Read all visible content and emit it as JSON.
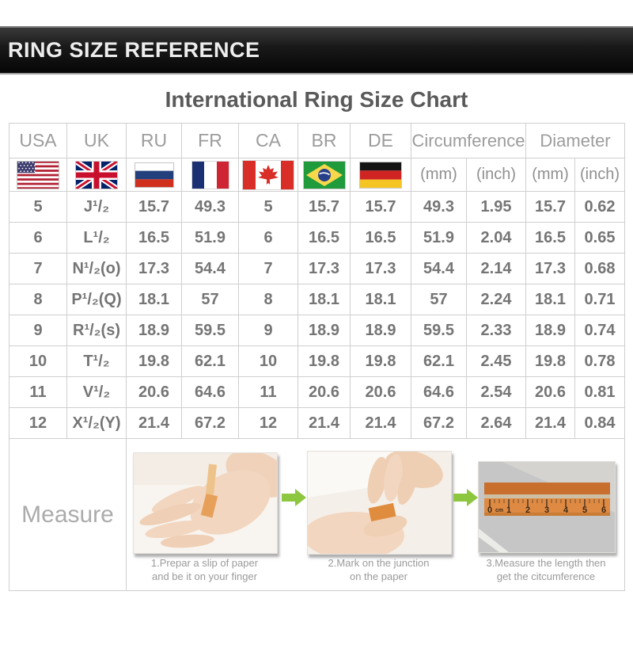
{
  "header": {
    "title": "RING SIZE REFERENCE"
  },
  "chart": {
    "title": "International Ring Size Chart"
  },
  "table": {
    "columns": [
      {
        "key": "usa",
        "label": "USA",
        "flag": "us"
      },
      {
        "key": "uk",
        "label": "UK",
        "flag": "uk"
      },
      {
        "key": "ru",
        "label": "RU",
        "flag": "ru"
      },
      {
        "key": "fr",
        "label": "FR",
        "flag": "fr"
      },
      {
        "key": "ca",
        "label": "CA",
        "flag": "ca"
      },
      {
        "key": "br",
        "label": "BR",
        "flag": "br"
      },
      {
        "key": "de",
        "label": "DE",
        "flag": "de"
      }
    ],
    "groups": [
      {
        "label": "Circumference",
        "sub": [
          "(mm)",
          "(inch)"
        ]
      },
      {
        "label": "Diameter",
        "sub": [
          "(mm)",
          "(inch)"
        ]
      }
    ],
    "rows": [
      [
        "5",
        "J¹/₂",
        "15.7",
        "49.3",
        "5",
        "15.7",
        "15.7",
        "49.3",
        "1.95",
        "15.7",
        "0.62"
      ],
      [
        "6",
        "L¹/₂",
        "16.5",
        "51.9",
        "6",
        "16.5",
        "16.5",
        "51.9",
        "2.04",
        "16.5",
        "0.65"
      ],
      [
        "7",
        "N¹/₂(o)",
        "17.3",
        "54.4",
        "7",
        "17.3",
        "17.3",
        "54.4",
        "2.14",
        "17.3",
        "0.68"
      ],
      [
        "8",
        "P¹/₂(Q)",
        "18.1",
        "57",
        "8",
        "18.1",
        "18.1",
        "57",
        "2.24",
        "18.1",
        "0.71"
      ],
      [
        "9",
        "R¹/₂(s)",
        "18.9",
        "59.5",
        "9",
        "18.9",
        "18.9",
        "59.5",
        "2.33",
        "18.9",
        "0.74"
      ],
      [
        "10",
        "T¹/₂",
        "19.8",
        "62.1",
        "10",
        "19.8",
        "19.8",
        "62.1",
        "2.45",
        "19.8",
        "0.78"
      ],
      [
        "11",
        "V¹/₂",
        "20.6",
        "64.6",
        "11",
        "20.6",
        "20.6",
        "64.6",
        "2.54",
        "20.6",
        "0.81"
      ],
      [
        "12",
        "X¹/₂(Y)",
        "21.4",
        "67.2",
        "12",
        "21.4",
        "21.4",
        "67.2",
        "2.64",
        "21.4",
        "0.84"
      ]
    ]
  },
  "measure": {
    "label": "Measure",
    "steps": [
      {
        "caption_line1": "1.Prepar a slip of paper",
        "caption_line2": "and be it on your finger"
      },
      {
        "caption_line1": "2.Mark on the junction",
        "caption_line2": "on the paper"
      },
      {
        "caption_line1": "3.Measure the length then",
        "caption_line2": "get the citcumference"
      }
    ],
    "ruler_labels": [
      "0",
      "cm",
      "1",
      "2",
      "3",
      "4",
      "5",
      "6"
    ]
  },
  "colors": {
    "accent_green": "#8dc63f",
    "bar_black": "#0d0d0d",
    "title_gray": "#5a5a5a",
    "header_text": "#9c9c9c",
    "data_text": "#757575",
    "border_gray": "#cfcfcf",
    "ruler_orange": "#df8a43",
    "skin_tone": "#f2d6bf"
  }
}
